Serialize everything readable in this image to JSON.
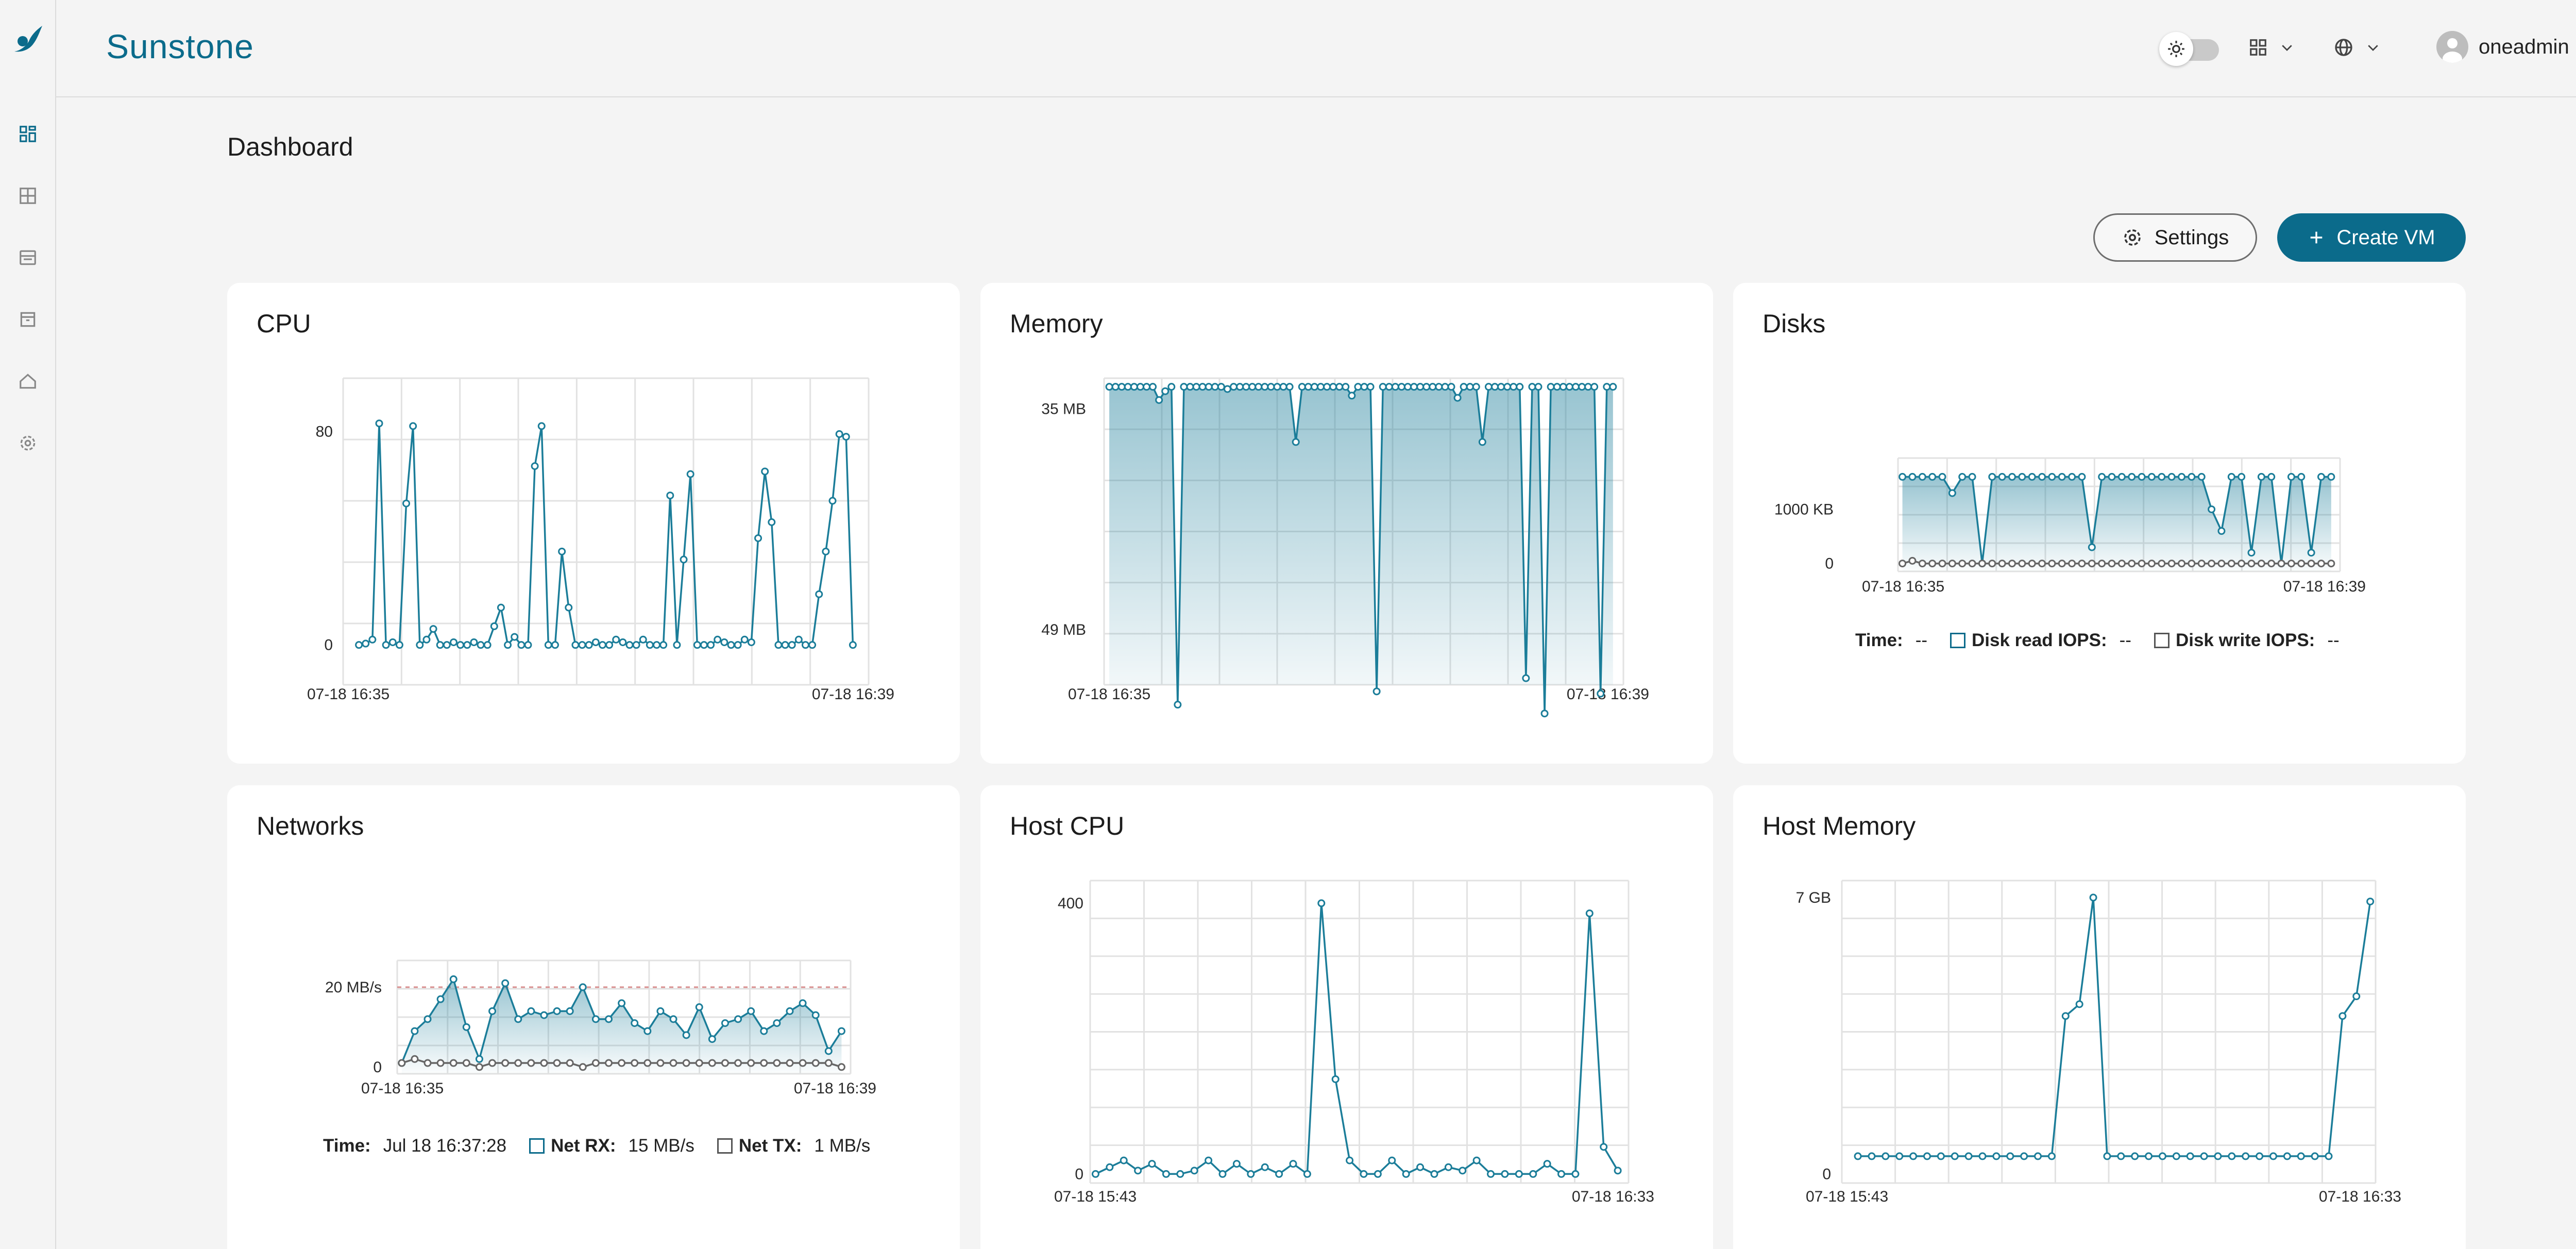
{
  "app": {
    "brand": "Sunstone"
  },
  "header": {
    "user_name": "oneadmin"
  },
  "page": {
    "title": "Dashboard",
    "settings_label": "Settings",
    "create_vm_label": "Create VM"
  },
  "sidebar": {
    "items": [
      {
        "icon": "dashboard-icon",
        "active": true
      },
      {
        "icon": "instances-icon",
        "active": false
      },
      {
        "icon": "storage-icon",
        "active": false
      },
      {
        "icon": "templates-icon",
        "active": false
      },
      {
        "icon": "infrastructure-icon",
        "active": false
      },
      {
        "icon": "settings-gear-icon",
        "active": false
      }
    ]
  },
  "colors": {
    "accent": "#0b6b8b",
    "line": "#1b7d99",
    "tx": "#666666"
  },
  "cards": {
    "cpu": {
      "title": "CPU"
    },
    "memory": {
      "title": "Memory"
    },
    "disks": {
      "title": "Disks",
      "time_label": "Time:",
      "time_value": "--",
      "read_label": "Disk read IOPS:",
      "read_value": "--",
      "write_label": "Disk write IOPS:",
      "write_value": "--"
    },
    "networks": {
      "title": "Networks",
      "time_label": "Time:",
      "time_value": "Jul 18 16:37:28",
      "rx_label": "Net RX:",
      "rx_value": "15 MB/s",
      "tx_label": "Net TX:",
      "tx_value": "1 MB/s"
    },
    "host_cpu": {
      "title": "Host CPU"
    },
    "host_memory": {
      "title": "Host Memory"
    }
  },
  "chart_data": [
    {
      "id": "cpu",
      "type": "line",
      "x_ticks": [
        "07-18 16:35",
        "07-18 16:39"
      ],
      "y_ticks": [
        "0",
        "80"
      ],
      "ylim": [
        0,
        85
      ],
      "series": [
        {
          "values": [
            0,
            0.5,
            2,
            83,
            0,
            1,
            0,
            53,
            82,
            0,
            2,
            6,
            0,
            0,
            1,
            0,
            0,
            1,
            0,
            0,
            7,
            14,
            0,
            3,
            0,
            0,
            67,
            82,
            0,
            0,
            35,
            14,
            0,
            0,
            0,
            1,
            0,
            0,
            2,
            1,
            0,
            0,
            2,
            0,
            0,
            0,
            56,
            0,
            32,
            64,
            0,
            0,
            0,
            2,
            1,
            0,
            0,
            2,
            1,
            40,
            65,
            46,
            0,
            0,
            0,
            2,
            0,
            0,
            19,
            35,
            54,
            79,
            78,
            0
          ]
        }
      ]
    },
    {
      "id": "memory",
      "type": "area",
      "x_ticks": [
        "07-18 16:35",
        "07-18 16:39"
      ],
      "y_ticks": [
        "49 MB",
        "35 MB"
      ],
      "ylim": [
        46,
        36
      ],
      "series": [
        {
          "values": [
            35.0,
            35.0,
            35.0,
            35.0,
            35.0,
            35.0,
            35.0,
            35.0,
            35.6,
            35.2,
            35.0,
            49.4,
            35.0,
            35.0,
            35.0,
            35.0,
            35.0,
            35.0,
            35.0,
            35.1,
            35.0,
            35.0,
            35.0,
            35.0,
            35.0,
            35.0,
            35.0,
            35.0,
            35.0,
            35.0,
            37.5,
            35.0,
            35.0,
            35.0,
            35.0,
            35.0,
            35.0,
            35.0,
            35.0,
            35.4,
            35.0,
            35.0,
            35.0,
            48.8,
            35.0,
            35.0,
            35.0,
            35.0,
            35.0,
            35.0,
            35.0,
            35.0,
            35.0,
            35.0,
            35.0,
            35.0,
            35.5,
            35.0,
            35.0,
            35.0,
            37.5,
            35.0,
            35.0,
            35.0,
            35.0,
            35.0,
            35.0,
            48.2,
            35.0,
            35.0,
            49.8,
            35.0,
            35.0,
            35.0,
            35.0,
            35.0,
            35.0,
            35.0,
            35.0,
            48.9,
            35.0,
            35.0
          ]
        }
      ]
    },
    {
      "id": "disks",
      "type": "area",
      "x_ticks": [
        "07-18 16:35",
        "07-18 16:39"
      ],
      "y_ticks": [
        "0",
        "1000 KB"
      ],
      "ylim": [
        0,
        1800
      ],
      "series": [
        {
          "name": "Disk read IOPS",
          "values": [
            1600,
            1600,
            1600,
            1600,
            1600,
            1300,
            1600,
            1600,
            0,
            1600,
            1600,
            1600,
            1600,
            1600,
            1600,
            1600,
            1600,
            1600,
            1600,
            300,
            1600,
            1600,
            1600,
            1600,
            1600,
            1600,
            1600,
            1600,
            1600,
            1600,
            1600,
            1000,
            600,
            1600,
            1600,
            200,
            1600,
            1600,
            0,
            1600,
            1600,
            200,
            1600,
            1600
          ]
        },
        {
          "name": "Disk write IOPS",
          "values": [
            0,
            50,
            0,
            0,
            0,
            0,
            0,
            0,
            0,
            0,
            0,
            0,
            0,
            0,
            0,
            0,
            0,
            0,
            0,
            0,
            0,
            0,
            0,
            0,
            0,
            0,
            0,
            0,
            0,
            0,
            0,
            0,
            0,
            0,
            0,
            0,
            0,
            0,
            0,
            0,
            0,
            0,
            0,
            0
          ]
        }
      ]
    },
    {
      "id": "networks",
      "type": "area",
      "x_ticks": [
        "07-18 16:35",
        "07-18 16:39"
      ],
      "y_ticks": [
        "0",
        "20 MB/s"
      ],
      "ylim": [
        0,
        25
      ],
      "series": [
        {
          "name": "Net RX",
          "values": [
            1,
            9,
            12,
            17,
            22,
            10,
            2,
            14,
            21,
            12,
            14,
            13,
            14,
            14,
            20,
            12,
            12,
            16,
            11,
            9,
            14,
            12,
            8,
            15,
            7,
            11,
            12,
            14,
            9,
            11,
            14,
            16,
            13,
            4,
            9
          ]
        },
        {
          "name": "Net TX",
          "values": [
            1,
            2,
            1,
            1,
            1,
            1,
            0,
            1,
            1,
            1,
            1,
            1,
            1,
            1,
            0,
            1,
            1,
            1,
            1,
            1,
            1,
            1,
            1,
            1,
            1,
            1,
            1,
            1,
            1,
            1,
            1,
            1,
            1,
            1,
            0
          ]
        }
      ]
    },
    {
      "id": "host_cpu",
      "type": "line",
      "x_ticks": [
        "07-18 15:43",
        "07-18 16:33"
      ],
      "y_ticks": [
        "0",
        "400"
      ],
      "ylim": [
        0,
        420
      ],
      "series": [
        {
          "values": [
            0,
            10,
            20,
            5,
            15,
            0,
            0,
            5,
            20,
            0,
            15,
            0,
            10,
            0,
            15,
            0,
            400,
            140,
            20,
            0,
            0,
            20,
            0,
            10,
            0,
            10,
            5,
            20,
            0,
            0,
            0,
            0,
            15,
            0,
            0,
            385,
            40,
            5
          ]
        }
      ]
    },
    {
      "id": "host_memory",
      "type": "line",
      "x_ticks": [
        "07-18 15:43",
        "07-18 16:33"
      ],
      "y_ticks": [
        "0",
        "7 GB"
      ],
      "ylim": [
        0,
        7.2
      ],
      "series": [
        {
          "values": [
            0.45,
            0.45,
            0.45,
            0.45,
            0.45,
            0.45,
            0.45,
            0.45,
            0.45,
            0.45,
            0.45,
            0.45,
            0.45,
            0.45,
            0.45,
            4.0,
            4.3,
            7.0,
            0.45,
            0.45,
            0.45,
            0.45,
            0.45,
            0.45,
            0.45,
            0.45,
            0.45,
            0.45,
            0.45,
            0.45,
            0.45,
            0.45,
            0.45,
            0.45,
            0.45,
            4.0,
            4.5,
            6.9
          ]
        }
      ]
    }
  ]
}
